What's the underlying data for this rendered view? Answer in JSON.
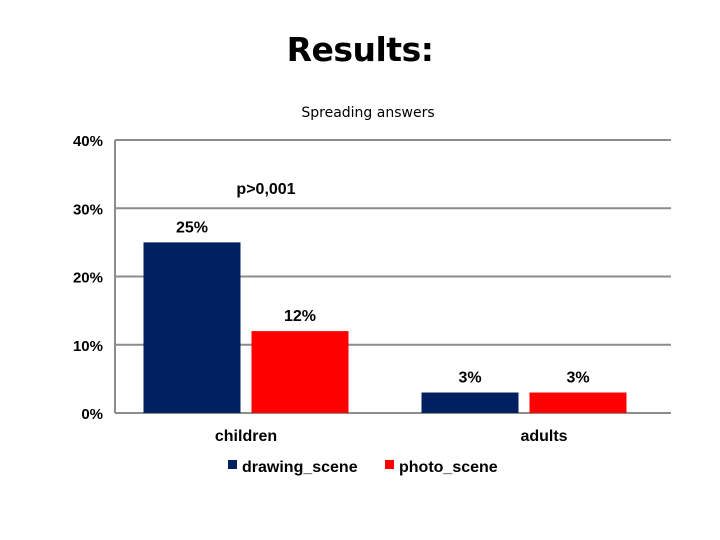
{
  "page_title": "Results:",
  "chart_data": {
    "type": "bar",
    "title": "Spreading answers",
    "categories": [
      "children",
      "adults"
    ],
    "series": [
      {
        "name": "drawing_scene",
        "color": "#002060",
        "values": [
          25,
          3
        ],
        "labels": [
          "25%",
          "3%"
        ]
      },
      {
        "name": "photo_scene",
        "color": "#FF0000",
        "values": [
          12,
          3
        ],
        "labels": [
          "12%",
          "3%"
        ]
      }
    ],
    "ylim": [
      0,
      40
    ],
    "yticks": [
      0,
      10,
      20,
      30,
      40
    ],
    "ytick_labels": [
      "0%",
      "10%",
      "20%",
      "30%",
      "40%"
    ],
    "annotation": "p>0,001",
    "grid": true,
    "legend_position": "bottom"
  }
}
